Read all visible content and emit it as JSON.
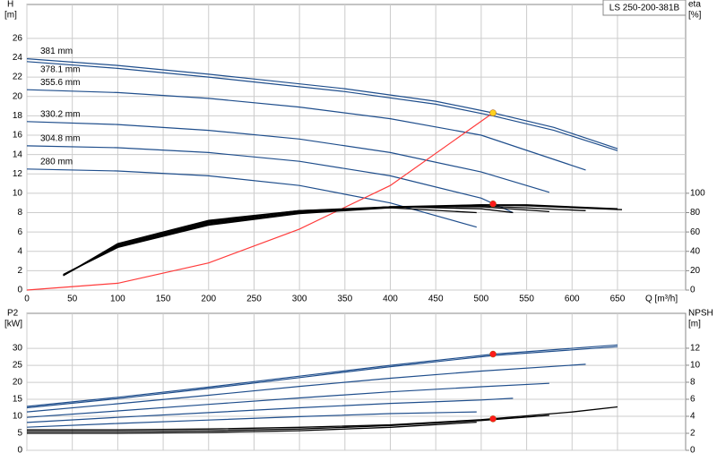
{
  "chart_data": [
    {
      "type": "line",
      "title": "LS 250-200-381B",
      "y_label": "H",
      "y_unit": "[m]",
      "y2_label": "eta",
      "y2_unit": "[%]",
      "x_label": "Q [m³/h]",
      "xlim": [
        0,
        725
      ],
      "xticks": [
        0,
        50,
        100,
        150,
        200,
        250,
        300,
        350,
        400,
        450,
        500,
        550,
        600,
        650
      ],
      "ylim": [
        0,
        29.5
      ],
      "yticks": [
        0,
        2,
        4,
        6,
        8,
        10,
        12,
        14,
        16,
        18,
        20,
        22,
        24,
        26
      ],
      "y2lim": [
        0,
        295
      ],
      "y2ticks": [
        0,
        20,
        40,
        60,
        80,
        100
      ],
      "grid": true,
      "series": [
        {
          "name": "381 mm",
          "color": "#1f4e8c",
          "x": [
            0,
            100,
            200,
            260,
            350,
            450,
            513,
            580,
            650
          ],
          "values": [
            23.9,
            23.2,
            22.3,
            21.7,
            20.8,
            19.5,
            18.3,
            16.8,
            14.6
          ]
        },
        {
          "name": "378.1 mm",
          "color": "#1f4e8c",
          "x": [
            0,
            100,
            200,
            260,
            350,
            450,
            513,
            580,
            650
          ],
          "values": [
            23.6,
            22.9,
            22.0,
            21.4,
            20.5,
            19.2,
            18.0,
            16.5,
            14.4
          ]
        },
        {
          "name": "355.6 mm",
          "color": "#1f4e8c",
          "x": [
            0,
            100,
            200,
            300,
            400,
            500,
            615
          ],
          "values": [
            20.7,
            20.4,
            19.8,
            18.9,
            17.7,
            16.0,
            12.4
          ]
        },
        {
          "name": "330.2 mm",
          "color": "#1f4e8c",
          "x": [
            0,
            100,
            200,
            300,
            400,
            500,
            575
          ],
          "values": [
            17.4,
            17.1,
            16.5,
            15.6,
            14.2,
            12.2,
            10.1
          ]
        },
        {
          "name": "304.8 mm",
          "color": "#1f4e8c",
          "x": [
            0,
            100,
            200,
            300,
            400,
            500,
            535
          ],
          "values": [
            14.9,
            14.7,
            14.2,
            13.3,
            11.8,
            9.5,
            8.0
          ]
        },
        {
          "name": "280 mm",
          "color": "#1f4e8c",
          "x": [
            0,
            100,
            200,
            300,
            400,
            495
          ],
          "values": [
            12.5,
            12.3,
            11.8,
            10.8,
            9.0,
            6.5
          ]
        },
        {
          "color": "#ff3b3b",
          "x": [
            0,
            100,
            200,
            300,
            400,
            513
          ],
          "values": [
            0,
            0.7,
            2.8,
            6.3,
            10.8,
            18.3
          ]
        },
        {
          "color": "#000000",
          "axis": "y2",
          "x": [
            40,
            100,
            200,
            300,
            400,
            500,
            550,
            650
          ],
          "values": [
            16,
            44,
            67,
            79,
            85,
            88,
            88,
            84
          ]
        },
        {
          "color": "#000000",
          "axis": "y2",
          "x": [
            40,
            100,
            200,
            300,
            400,
            500,
            550,
            655
          ],
          "values": [
            16,
            45,
            68,
            80,
            86,
            88,
            87,
            83
          ]
        },
        {
          "color": "#000000",
          "axis": "y2",
          "x": [
            40,
            100,
            200,
            300,
            400,
            500,
            615
          ],
          "values": [
            16,
            45,
            69,
            80,
            86,
            87,
            82
          ]
        },
        {
          "color": "#000000",
          "axis": "y2",
          "x": [
            40,
            100,
            200,
            300,
            400,
            500,
            575
          ],
          "values": [
            15,
            46,
            70,
            81,
            86,
            86,
            81
          ]
        },
        {
          "color": "#000000",
          "axis": "y2",
          "x": [
            40,
            100,
            200,
            300,
            400,
            500,
            535
          ],
          "values": [
            15,
            47,
            71,
            82,
            86,
            84,
            80
          ]
        },
        {
          "color": "#000000",
          "axis": "y2",
          "x": [
            40,
            100,
            200,
            300,
            400,
            495
          ],
          "values": [
            15,
            48,
            72,
            82,
            85,
            80
          ]
        }
      ],
      "points": [
        {
          "x": 513,
          "value": 18.3,
          "color": "#ffd21f"
        },
        {
          "x": 513,
          "value": 89,
          "color": "#ff1a1a",
          "axis": "y2"
        }
      ]
    },
    {
      "type": "line",
      "y_label": "P2",
      "y_unit": "[kW]",
      "y2_label": "NPSH",
      "y2_unit": "[m]",
      "xlim": [
        0,
        725
      ],
      "xticks": [
        0,
        50,
        100,
        150,
        200,
        250,
        300,
        350,
        400,
        450,
        500,
        550,
        600,
        650
      ],
      "ylim": [
        0,
        40.3
      ],
      "yticks": [
        0,
        5,
        10,
        15,
        20,
        25,
        30
      ],
      "y2lim": [
        0,
        16.1
      ],
      "y2ticks": [
        0,
        2,
        4,
        6,
        8,
        10,
        12
      ],
      "grid": true,
      "series": [
        {
          "color": "#1f4e8c",
          "x": [
            0,
            100,
            200,
            300,
            400,
            513,
            650
          ],
          "values": [
            12.9,
            15.6,
            18.6,
            21.8,
            25.0,
            28.3,
            31.0
          ]
        },
        {
          "color": "#1f4e8c",
          "x": [
            0,
            100,
            200,
            300,
            400,
            513,
            650
          ],
          "values": [
            12.5,
            15.2,
            18.2,
            21.4,
            24.6,
            27.9,
            30.5
          ]
        },
        {
          "color": "#1f4e8c",
          "x": [
            0,
            100,
            200,
            300,
            400,
            500,
            615
          ],
          "values": [
            11.3,
            13.7,
            16.2,
            18.8,
            21.2,
            23.3,
            25.3
          ]
        },
        {
          "color": "#1f4e8c",
          "x": [
            0,
            100,
            200,
            300,
            400,
            500,
            575
          ],
          "values": [
            9.7,
            11.6,
            13.5,
            15.4,
            17.2,
            18.7,
            19.7
          ]
        },
        {
          "color": "#1f4e8c",
          "x": [
            0,
            100,
            200,
            300,
            400,
            500,
            535
          ],
          "values": [
            8.2,
            9.7,
            11.1,
            12.5,
            13.8,
            14.8,
            15.3
          ]
        },
        {
          "color": "#1f4e8c",
          "x": [
            0,
            100,
            200,
            300,
            400,
            495
          ],
          "values": [
            6.8,
            7.9,
            8.9,
            9.9,
            10.8,
            11.3
          ]
        },
        {
          "color": "#000000",
          "axis": "y2",
          "x": [
            0,
            100,
            200,
            300,
            400,
            500,
            600,
            650
          ],
          "values": [
            2.4,
            2.4,
            2.5,
            2.7,
            3.0,
            3.6,
            4.5,
            5.1
          ]
        },
        {
          "color": "#000000",
          "axis": "y2",
          "x": [
            0,
            100,
            200,
            300,
            400,
            500,
            575
          ],
          "values": [
            2.2,
            2.2,
            2.3,
            2.5,
            2.9,
            3.5,
            4.1
          ]
        },
        {
          "color": "#000000",
          "axis": "y2",
          "x": [
            0,
            100,
            200,
            300,
            400,
            495
          ],
          "values": [
            2.0,
            2.0,
            2.1,
            2.3,
            2.7,
            3.3
          ]
        }
      ],
      "points": [
        {
          "x": 513,
          "value": 28.3,
          "color": "#ff1a1a"
        },
        {
          "x": 513,
          "value": 3.7,
          "color": "#ff1a1a",
          "axis": "y2"
        }
      ]
    }
  ]
}
